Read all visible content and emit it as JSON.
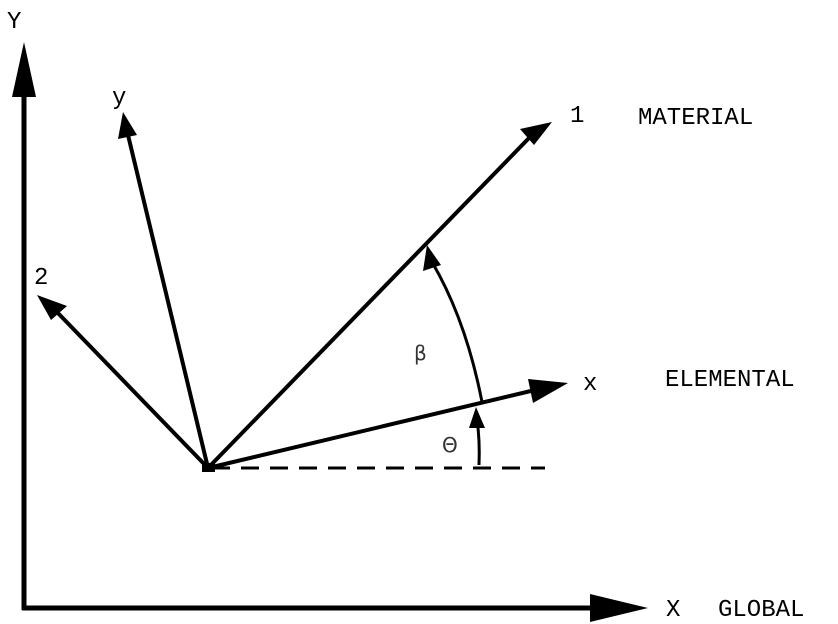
{
  "global": {
    "x_label": "X",
    "y_label": "Y",
    "system_label": "GLOBAL"
  },
  "elemental": {
    "x_label": "x",
    "y_label": "y",
    "system_label": "ELEMENTAL"
  },
  "material": {
    "axis1_label": "1",
    "axis2_label": "2",
    "system_label": "MATERIAL"
  },
  "angles": {
    "theta_label": "Θ",
    "beta_label": "β"
  }
}
